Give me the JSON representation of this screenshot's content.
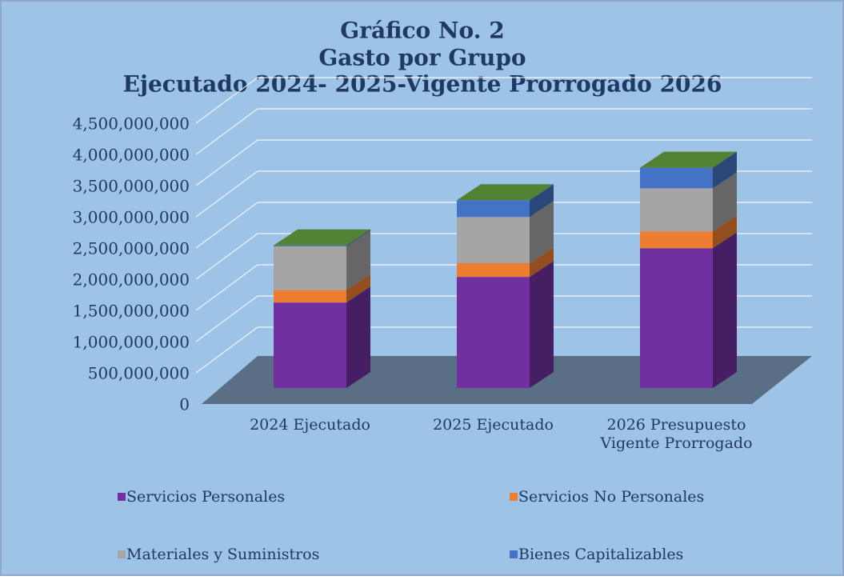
{
  "chart_data": {
    "type": "bar3d_stacked",
    "title": [
      "Gráfico No. 2",
      "Gasto por Grupo",
      "Ejecutado 2024- 2025-Vigente Prorrogado 2026"
    ],
    "categories": [
      "2024 Ejecutado",
      "2025 Ejecutado",
      "2026 Presupuesto Vigente Prorrogado"
    ],
    "series": [
      {
        "name": "Servicios Personales",
        "color": "#7030a0",
        "values": [
          1370000000,
          1780000000,
          2240000000
        ]
      },
      {
        "name": "Servicios No Personales",
        "color": "#ed7d31",
        "values": [
          200000000,
          220000000,
          270000000
        ]
      },
      {
        "name": "Materiales y Suministros",
        "color": "#a5a5a5",
        "values": [
          700000000,
          740000000,
          690000000
        ]
      },
      {
        "name": "Bienes Capitalizables",
        "color": "#4472c4",
        "values": [
          15000000,
          270000000,
          330000000
        ]
      }
    ],
    "top_color": "#548235",
    "ylim": [
      0,
      4500000000
    ],
    "yticks": [
      0,
      {
        "value": 500000000,
        "label": "500,000,000"
      },
      {
        "value": 1000000000,
        "label": "1,000,000,000"
      },
      {
        "value": 1500000000,
        "label": "1,500,000,000"
      },
      {
        "value": 2000000000,
        "label": "2,000,000,000"
      },
      {
        "value": 2500000000,
        "label": "2,500,000,000"
      },
      {
        "value": 3000000000,
        "label": "3,000,000,000"
      },
      {
        "value": 3500000000,
        "label": "3,500,000,000"
      },
      {
        "value": 4000000000,
        "label": "4,000,000,000"
      },
      {
        "value": 4500000000,
        "label": "4,500,000,000"
      }
    ],
    "grid": true
  }
}
